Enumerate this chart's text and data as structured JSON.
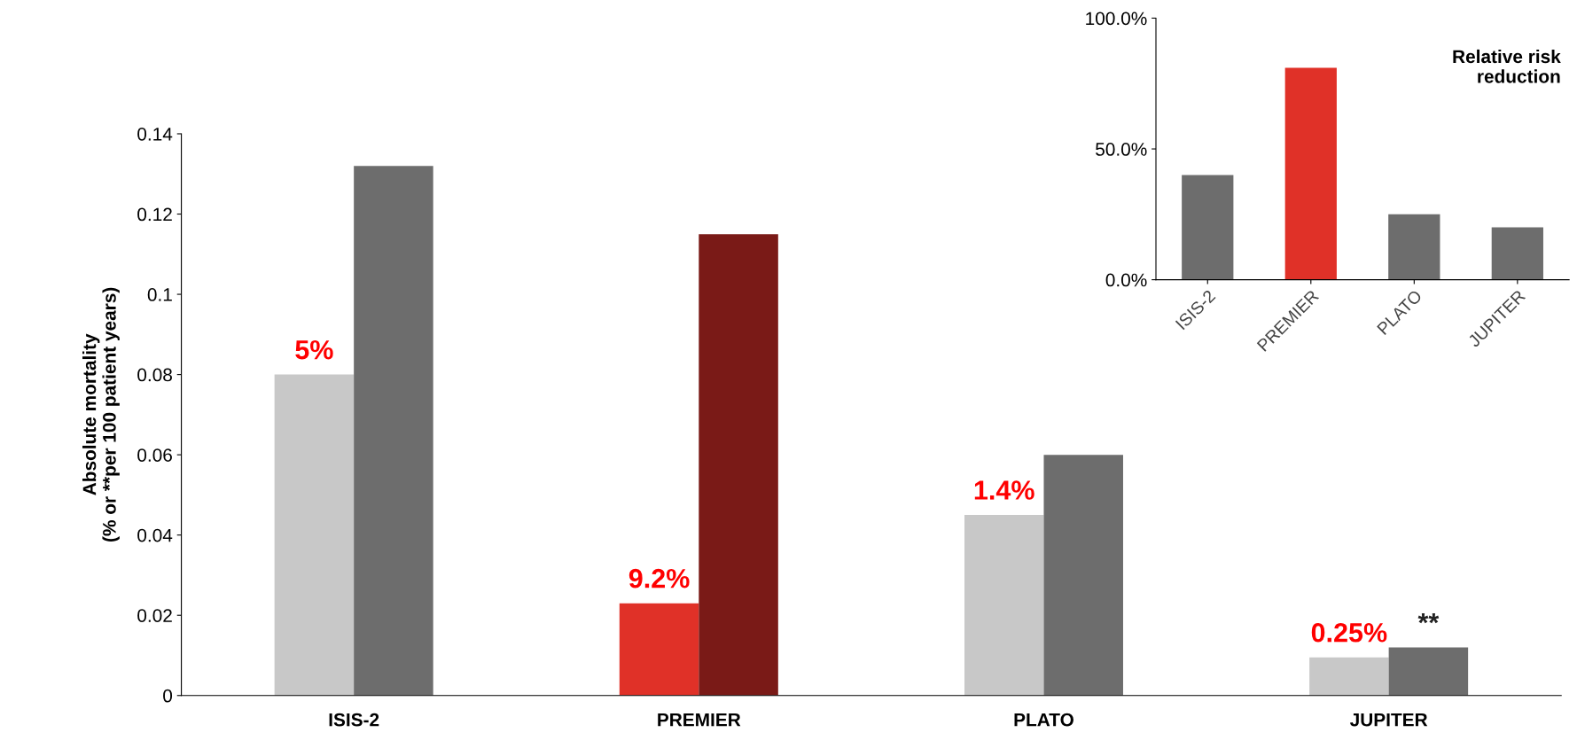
{
  "chart_data": [
    {
      "type": "bar",
      "ylabel": "Absolute mortality\n(% or **per 100 patient years)",
      "categories": [
        "ISIS-2",
        "PREMIER",
        "PLATO",
        "JUPITER"
      ],
      "series": [
        {
          "colors": [
            "#c8c8c8",
            "#e03128",
            "#c8c8c8",
            "#c8c8c8"
          ],
          "values": [
            0.08,
            0.023,
            0.045,
            0.0095
          ]
        },
        {
          "colors": [
            "#6d6d6d",
            "#7a1a17",
            "#6d6d6d",
            "#6d6d6d"
          ],
          "values": [
            0.132,
            0.115,
            0.06,
            0.012
          ]
        }
      ],
      "ylim": [
        0,
        0.14
      ],
      "yticks": [
        0,
        0.02,
        0.04,
        0.06,
        0.08,
        0.1,
        0.12,
        0.14
      ],
      "grid": false,
      "annotations": [
        {
          "text": "5%",
          "x": "ISIS-2",
          "y": 0.08
        },
        {
          "text": "9.2%",
          "x": "PREMIER",
          "y": 0.023
        },
        {
          "text": "1.4%",
          "x": "PLATO",
          "y": 0.045
        },
        {
          "text": "0.25%",
          "x": "JUPITER",
          "y": 0.0095
        },
        {
          "text": "**",
          "x": "JUPITER",
          "y": 0.012
        }
      ]
    },
    {
      "type": "bar",
      "title": "Relative risk\nreduction",
      "categories": [
        "ISIS-2",
        "PREMIER",
        "PLATO",
        "JUPITER"
      ],
      "series": [
        {
          "colors": [
            "#6d6d6d",
            "#e03128",
            "#6d6d6d",
            "#6d6d6d"
          ],
          "values": [
            40,
            81,
            25,
            20
          ]
        }
      ],
      "ylim": [
        0,
        100
      ],
      "yticks": [
        {
          "value": 0,
          "label": "0.0%"
        },
        {
          "value": 50,
          "label": "50.0%"
        },
        {
          "value": 100,
          "label": "100.0%"
        }
      ],
      "grid": false
    }
  ]
}
